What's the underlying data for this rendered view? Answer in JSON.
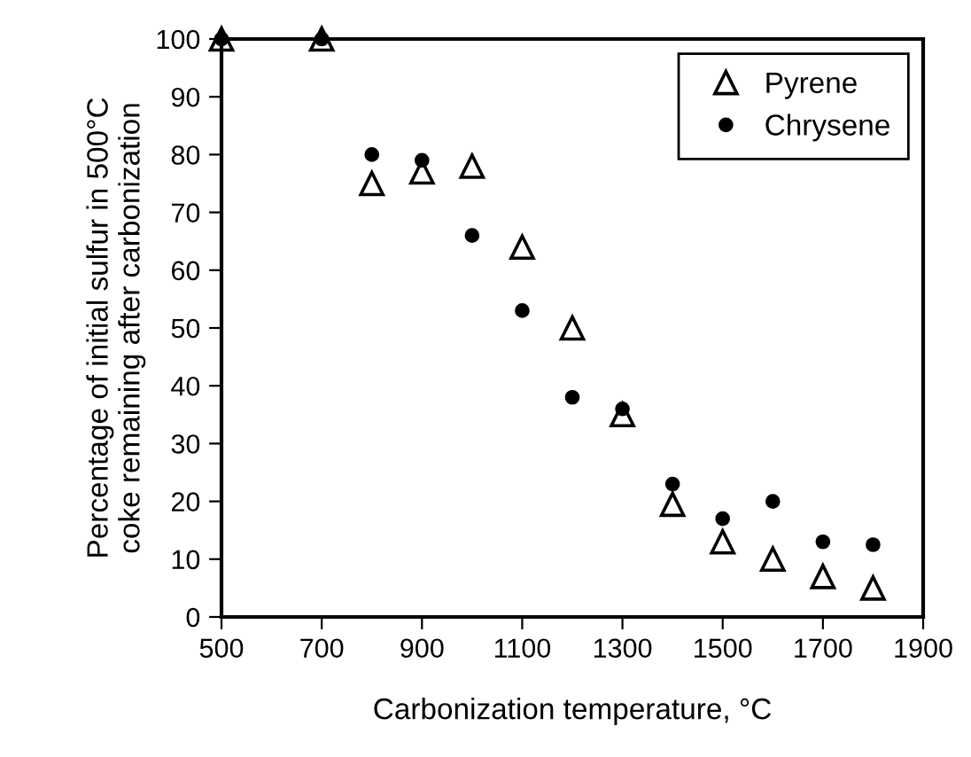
{
  "chart_data": {
    "type": "scatter",
    "xlabel": "Carbonization temperature, °C",
    "ylabel": "Percentage of initial sulfur in 500°C\ncoke remaining after carbonization",
    "x": [
      500,
      700,
      800,
      900,
      1000,
      1100,
      1200,
      1300,
      1400,
      1500,
      1600,
      1700,
      1800
    ],
    "series": [
      {
        "name": "Pyrene",
        "color": "#000000",
        "marker": "triangle",
        "values": [
          100,
          100,
          75,
          77,
          78,
          64,
          50,
          35,
          19.5,
          13,
          10,
          7,
          5
        ]
      },
      {
        "name": "Chrysene",
        "color": "#000000",
        "marker": "circle",
        "values": [
          100,
          100,
          80,
          79,
          66,
          53,
          38,
          36,
          23,
          17,
          20,
          13,
          12.5
        ]
      }
    ],
    "xlim": [
      500,
      1900
    ],
    "xticks": [
      500,
      700,
      900,
      1100,
      1300,
      1500,
      1700,
      1900
    ],
    "ylim": [
      0,
      100
    ],
    "yticks": [
      0,
      10,
      20,
      30,
      40,
      50,
      60,
      70,
      80,
      90,
      100
    ],
    "grid": false,
    "legend": "top right"
  }
}
